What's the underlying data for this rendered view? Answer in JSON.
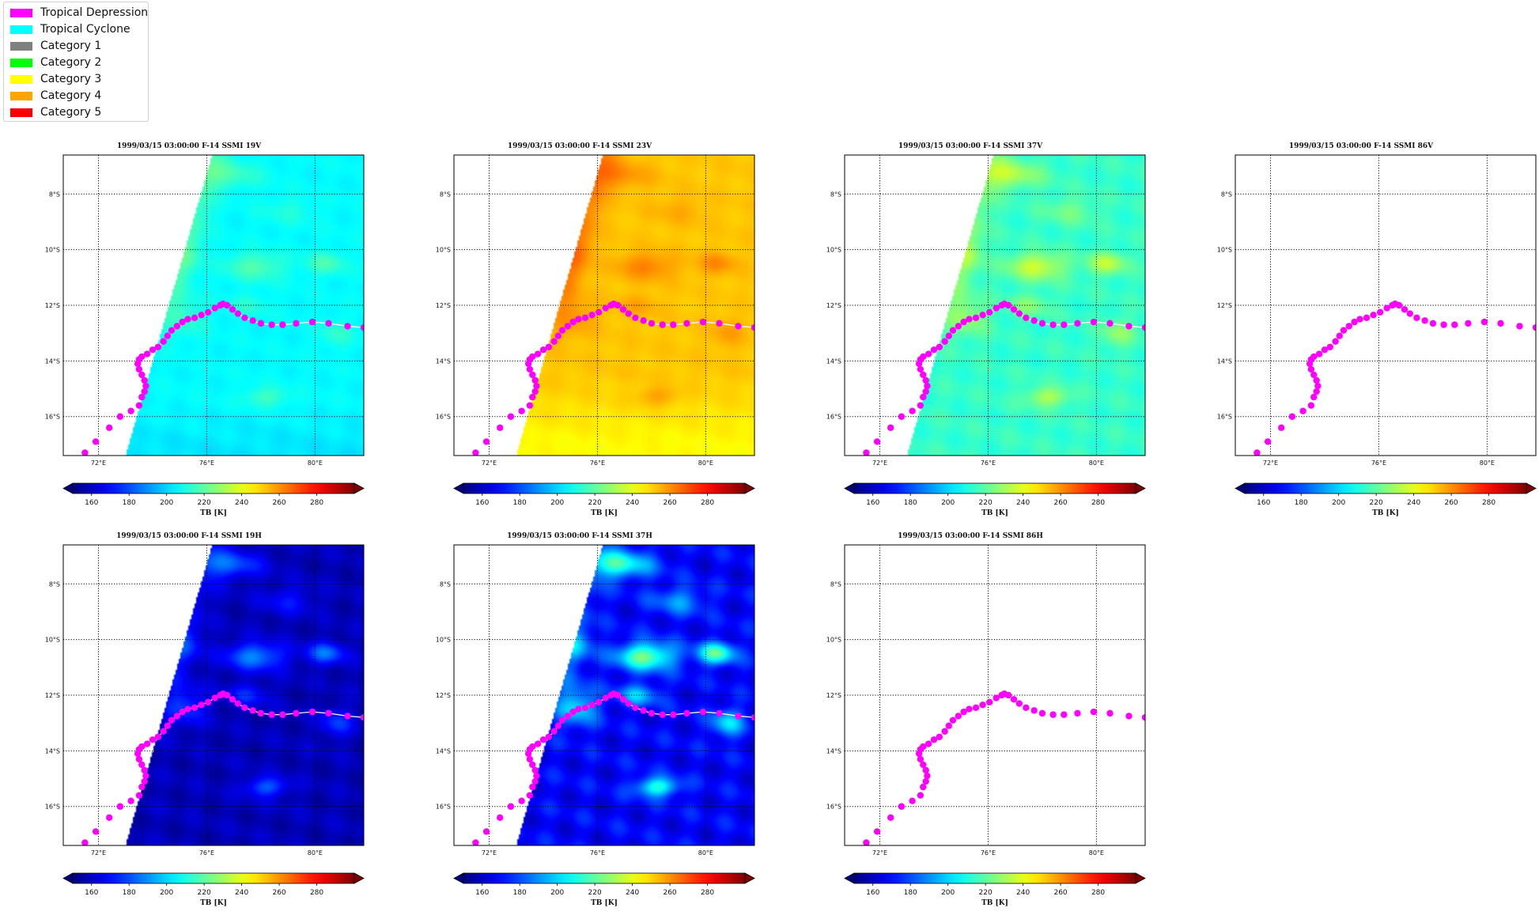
{
  "legend": {
    "items": [
      {
        "label": "Tropical Depression",
        "color": "#ff00ff"
      },
      {
        "label": "Tropical Cyclone",
        "color": "#00ffff"
      },
      {
        "label": "Category 1",
        "color": "#808080"
      },
      {
        "label": "Category 2",
        "color": "#00ff00"
      },
      {
        "label": "Category 3",
        "color": "#ffff00"
      },
      {
        "label": "Category 4",
        "color": "#ffa500"
      },
      {
        "label": "Category 5",
        "color": "#ff0000"
      }
    ]
  },
  "chart_data": [
    {
      "type": "heatmap",
      "title": "1999/03/15 03:00:00  F-14 SSMI 19V",
      "field": "19V",
      "has_swath": true
    },
    {
      "type": "heatmap",
      "title": "1999/03/15 03:00:00  F-14 SSMI 23V",
      "field": "23V",
      "has_swath": true
    },
    {
      "type": "heatmap",
      "title": "1999/03/15 03:00:00  F-14 SSMI 37V",
      "field": "37V",
      "has_swath": true
    },
    {
      "type": "heatmap",
      "title": "1999/03/15 03:00:00  F-14 SSMI 86V",
      "field": "86V",
      "has_swath": false
    },
    {
      "type": "heatmap",
      "title": "1999/03/15 03:00:00  F-14 SSMI 19H",
      "field": "19H",
      "has_swath": true
    },
    {
      "type": "heatmap",
      "title": "1999/03/15 03:00:00  F-14 SSMI 37H",
      "field": "37H",
      "has_swath": true
    },
    {
      "type": "heatmap",
      "title": "1999/03/15 03:00:00  F-14 SSMI 86H",
      "field": "86H",
      "has_swath": false
    }
  ],
  "map": {
    "lon_range": [
      70.7,
      81.8
    ],
    "lat_range": [
      -17.4,
      -6.6
    ],
    "lon_ticks": [
      {
        "value": 72,
        "label": "72°E"
      },
      {
        "value": 76,
        "label": "76°E"
      },
      {
        "value": 80,
        "label": "80°E"
      }
    ],
    "lat_ticks": [
      {
        "value": -8,
        "label": "8°S"
      },
      {
        "value": -10,
        "label": "10°S"
      },
      {
        "value": -12,
        "label": "12°S"
      },
      {
        "value": -14,
        "label": "14°S"
      },
      {
        "value": -16,
        "label": "16°S"
      }
    ],
    "grid": "dotted"
  },
  "colorbar": {
    "label": "TB [K]",
    "range": [
      150,
      300
    ],
    "ticks": [
      160,
      180,
      200,
      220,
      240,
      260,
      280
    ],
    "colormap": "jet",
    "extend": "both"
  },
  "track": {
    "category": "Tropical Depression",
    "color": "#ff00ff",
    "line_color": "#ffffff",
    "points": [
      [
        71.5,
        -17.3
      ],
      [
        71.9,
        -16.9
      ],
      [
        72.4,
        -16.4
      ],
      [
        72.8,
        -16.0
      ],
      [
        73.2,
        -15.8
      ],
      [
        73.5,
        -15.6
      ],
      [
        73.6,
        -15.3
      ],
      [
        73.7,
        -15.1
      ],
      [
        73.75,
        -14.9
      ],
      [
        73.7,
        -14.7
      ],
      [
        73.6,
        -14.5
      ],
      [
        73.5,
        -14.3
      ],
      [
        73.45,
        -14.1
      ],
      [
        73.5,
        -13.95
      ],
      [
        73.6,
        -13.85
      ],
      [
        73.8,
        -13.75
      ],
      [
        74.0,
        -13.6
      ],
      [
        74.2,
        -13.5
      ],
      [
        74.4,
        -13.3
      ],
      [
        74.55,
        -13.1
      ],
      [
        74.7,
        -12.9
      ],
      [
        74.9,
        -12.75
      ],
      [
        75.1,
        -12.6
      ],
      [
        75.3,
        -12.5
      ],
      [
        75.55,
        -12.45
      ],
      [
        75.8,
        -12.35
      ],
      [
        76.05,
        -12.25
      ],
      [
        76.3,
        -12.1
      ],
      [
        76.5,
        -12.0
      ],
      [
        76.6,
        -11.95
      ],
      [
        76.75,
        -12.0
      ],
      [
        76.95,
        -12.15
      ],
      [
        77.15,
        -12.3
      ],
      [
        77.4,
        -12.45
      ],
      [
        77.7,
        -12.55
      ],
      [
        78.0,
        -12.65
      ],
      [
        78.4,
        -12.7
      ],
      [
        78.8,
        -12.7
      ],
      [
        79.3,
        -12.65
      ],
      [
        79.9,
        -12.6
      ],
      [
        80.5,
        -12.65
      ],
      [
        81.2,
        -12.75
      ],
      [
        81.8,
        -12.8
      ]
    ]
  }
}
